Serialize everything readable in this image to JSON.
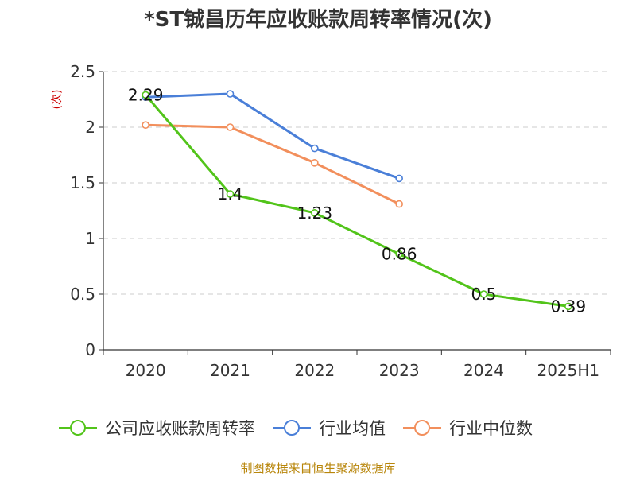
{
  "chart_data": {
    "type": "line",
    "title": "*ST铖昌历年应收账款周转率情况(次)",
    "ylabel": "(次)",
    "categories": [
      "2020",
      "2021",
      "2022",
      "2023",
      "2024",
      "2025H1"
    ],
    "ylim": [
      0,
      2.5
    ],
    "yticks": [
      "0",
      "0.5",
      "1",
      "1.5",
      "2",
      "2.5"
    ],
    "grid": true,
    "legend_position": "bottom",
    "series": [
      {
        "name": "公司应收账款周转率",
        "color": "#52c41a",
        "values": [
          2.29,
          1.4,
          1.23,
          0.86,
          0.5,
          0.39
        ],
        "labels": [
          "2.29",
          "1.4",
          "1.23",
          "0.86",
          "0.5",
          "0.39"
        ]
      },
      {
        "name": "行业均值",
        "color": "#4a7fd8",
        "values": [
          2.27,
          2.3,
          1.81,
          1.54,
          null,
          null
        ]
      },
      {
        "name": "行业中位数",
        "color": "#f28f5c",
        "values": [
          2.02,
          2.0,
          1.68,
          1.31,
          null,
          null
        ]
      }
    ]
  },
  "source": "制图数据来自恒生聚源数据库",
  "colors": {
    "grid": "#cccccc",
    "axis": "#333333",
    "ylabel": "#cc0000",
    "source": "#b8860b"
  }
}
